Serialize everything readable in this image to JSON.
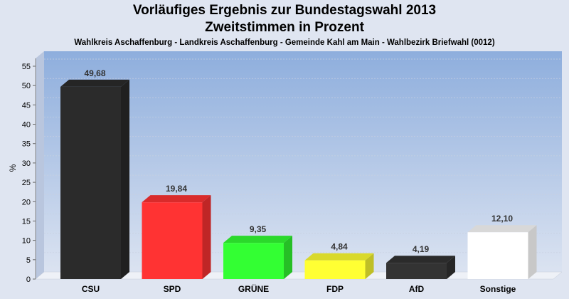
{
  "chart_data": {
    "type": "bar",
    "title": "Vorläufiges Ergebnis zur Bundestagswahl 2013",
    "subtitle": "Zweitstimmen in Prozent",
    "caption": "Wahlkreis Aschaffenburg - Landkreis Aschaffenburg - Gemeinde Kahl am Main - Wahlbezirk Briefwahl (0012)",
    "ylabel": "%",
    "xlabel": "",
    "ylim": [
      0,
      55
    ],
    "yticks": [
      "0",
      "5",
      "10",
      "15",
      "20",
      "25",
      "30",
      "35",
      "40",
      "45",
      "50",
      "55"
    ],
    "grid": true,
    "categories": [
      "CSU",
      "SPD",
      "GRÜNE",
      "FDP",
      "AfD",
      "Sonstige"
    ],
    "values": [
      49.68,
      19.84,
      9.35,
      4.84,
      4.19,
      12.1
    ],
    "value_labels": [
      "49,68",
      "19,84",
      "9,35",
      "4,84",
      "4,19",
      "12,10"
    ],
    "colors": [
      "#2b2b2b",
      "#ff3333",
      "#33ff33",
      "#ffff33",
      "#333333",
      "#ffffff"
    ]
  }
}
